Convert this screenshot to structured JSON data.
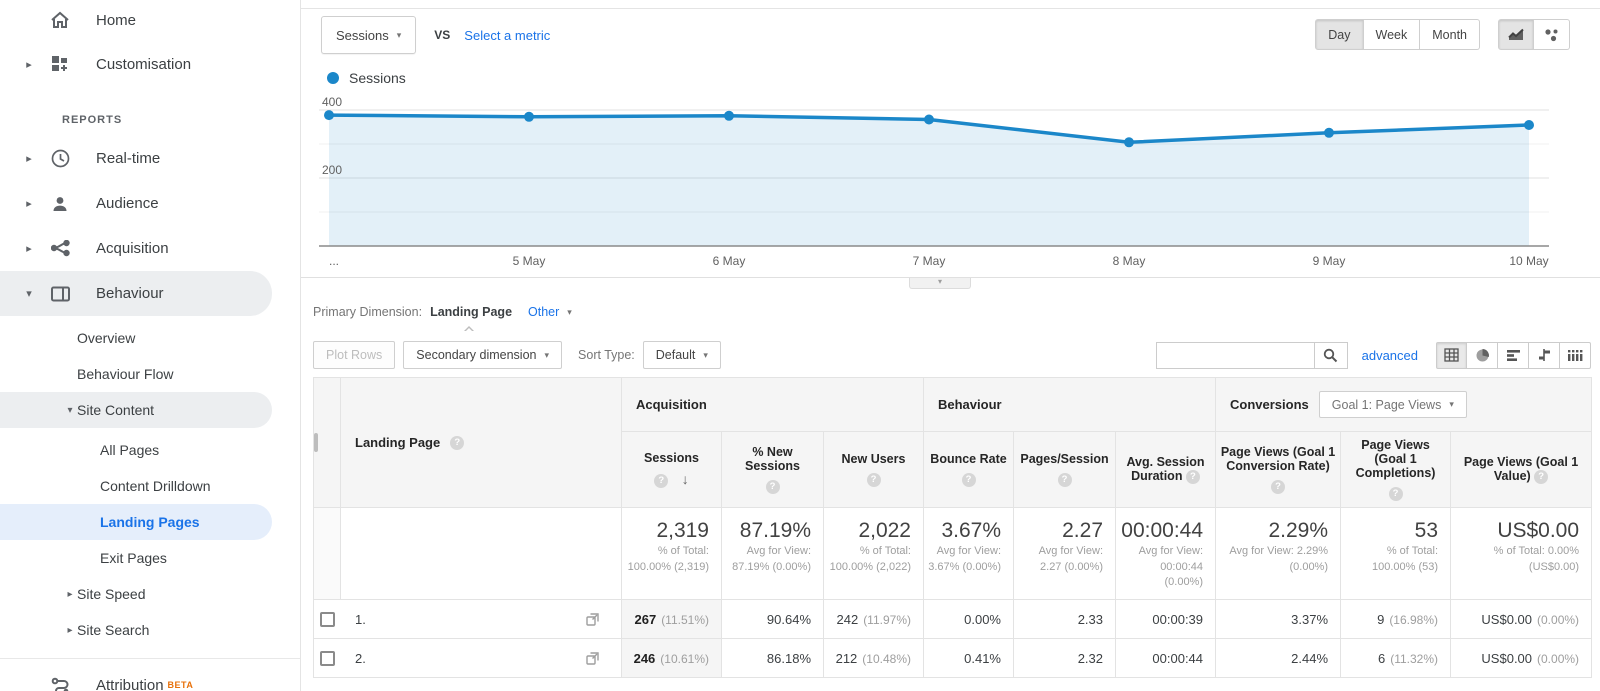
{
  "icons": {
    "caret_down": "▾",
    "caret_right": "▸",
    "sort_desc": "↓",
    "help": "?"
  },
  "sidebar": {
    "home": "Home",
    "customisation": "Customisation",
    "reports_header": "REPORTS",
    "realtime": "Real-time",
    "audience": "Audience",
    "acquisition": "Acquisition",
    "behaviour": "Behaviour",
    "overview": "Overview",
    "behaviour_flow": "Behaviour Flow",
    "site_content": "Site Content",
    "all_pages": "All Pages",
    "content_drilldown": "Content Drilldown",
    "landing_pages": "Landing Pages",
    "exit_pages": "Exit Pages",
    "site_speed": "Site Speed",
    "site_search": "Site Search",
    "attribution": "Attribution",
    "beta_badge": "BETA"
  },
  "toolbar": {
    "metric_selector": "Sessions",
    "vs_label": "VS",
    "select_metric": "Select a metric",
    "granularity": [
      "Day",
      "Week",
      "Month"
    ]
  },
  "chart_data": {
    "type": "area",
    "series": "Sessions",
    "x": [
      "...",
      "5 May",
      "6 May",
      "7 May",
      "8 May",
      "9 May",
      "10 May"
    ],
    "values": [
      385,
      380,
      383,
      372,
      305,
      333,
      356
    ],
    "ylim": [
      0,
      400
    ],
    "yticks": [
      200,
      400
    ],
    "color": "#1b87c9",
    "fill": "rgba(27,135,201,0.12)",
    "grid": "horizontal",
    "legend_position": "top-left"
  },
  "dimension_bar": {
    "label": "Primary Dimension:",
    "selected": "Landing Page",
    "other": "Other"
  },
  "controls": {
    "plot_rows": "Plot Rows",
    "secondary_dimension": "Secondary dimension",
    "sort_type_label": "Sort Type:",
    "sort_type_value": "Default",
    "search_value": "",
    "advanced": "advanced"
  },
  "table": {
    "groups": {
      "acquisition": "Acquisition",
      "behaviour": "Behaviour",
      "conversions": "Conversions"
    },
    "goal_selector": "Goal 1: Page Views",
    "columns": {
      "landing_page": "Landing Page",
      "sessions": "Sessions",
      "pct_new_sessions": "% New Sessions",
      "new_users": "New Users",
      "bounce_rate": "Bounce Rate",
      "pages_session": "Pages/Session",
      "avg_duration": "Avg. Session Duration",
      "pv_conv_rate": "Page Views (Goal 1 Conversion Rate)",
      "pv_completions": "Page Views (Goal 1 Completions)",
      "pv_value": "Page Views (Goal 1 Value)"
    },
    "totals": {
      "sessions": "2,319",
      "sessions_sub": "% of Total: 100.00% (2,319)",
      "new_sessions": "87.19%",
      "new_sessions_sub": "Avg for View: 87.19% (0.00%)",
      "new_users": "2,022",
      "new_users_sub": "% of Total: 100.00% (2,022)",
      "bounce": "3.67%",
      "bounce_sub": "Avg for View: 3.67% (0.00%)",
      "pages": "2.27",
      "pages_sub": "Avg for View: 2.27 (0.00%)",
      "duration": "00:00:44",
      "duration_sub": "Avg for View: 00:00:44 (0.00%)",
      "conv_rate": "2.29%",
      "conv_rate_sub": "Avg for View: 2.29% (0.00%)",
      "completions": "53",
      "completions_sub": "% of Total: 100.00% (53)",
      "value": "US$0.00",
      "value_sub": "% of Total: 0.00% (US$0.00)"
    },
    "rows": [
      {
        "index": "1.",
        "page": "",
        "sessions": "267",
        "sessions_pct": "(11.51%)",
        "new_sessions": "90.64%",
        "new_users": "242",
        "new_users_pct": "(11.97%)",
        "bounce": "0.00%",
        "pages": "2.33",
        "duration": "00:00:39",
        "conv_rate": "3.37%",
        "completions": "9",
        "completions_pct": "(16.98%)",
        "value": "US$0.00",
        "value_pct": "(0.00%)"
      },
      {
        "index": "2.",
        "page": "",
        "sessions": "246",
        "sessions_pct": "(10.61%)",
        "new_sessions": "86.18%",
        "new_users": "212",
        "new_users_pct": "(10.48%)",
        "bounce": "0.41%",
        "pages": "2.32",
        "duration": "00:00:44",
        "conv_rate": "2.44%",
        "completions": "6",
        "completions_pct": "(11.32%)",
        "value": "US$0.00",
        "value_pct": "(0.00%)"
      }
    ]
  }
}
